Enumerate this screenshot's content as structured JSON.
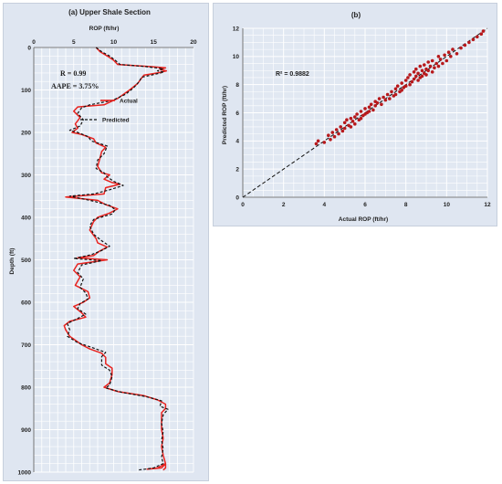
{
  "chart_data": [
    {
      "type": "line",
      "title": "(a) Upper Shale Section",
      "xlabel": "ROP (ft/hr)",
      "ylabel": "Depth (ft)",
      "xlim": [
        0,
        20
      ],
      "ylim": [
        1000,
        0
      ],
      "xticks": [
        0,
        5,
        10,
        15,
        20
      ],
      "yticks": [
        0,
        100,
        200,
        300,
        400,
        500,
        600,
        700,
        800,
        900,
        1000
      ],
      "x_axis_position": "top",
      "y_inverted": true,
      "grid": true,
      "legend_position": "top-right",
      "annotations": [
        "R = 0.99",
        "AAPE = 3.75%"
      ],
      "series": [
        {
          "name": "Actual",
          "color": "#e8231f",
          "style": "solid",
          "points": [
            [
              7.8,
              0
            ],
            [
              8.3,
              10
            ],
            [
              9.2,
              20
            ],
            [
              10.0,
              30
            ],
            [
              10.5,
              40
            ],
            [
              14.5,
              45
            ],
            [
              16.5,
              48
            ],
            [
              15.8,
              52
            ],
            [
              16.6,
              55
            ],
            [
              15.5,
              60
            ],
            [
              13.8,
              65
            ],
            [
              13.5,
              72
            ],
            [
              13.0,
              85
            ],
            [
              12.0,
              100
            ],
            [
              10.5,
              120
            ],
            [
              8.8,
              135
            ],
            [
              5.5,
              140
            ],
            [
              5.0,
              150
            ],
            [
              5.8,
              165
            ],
            [
              5.2,
              180
            ],
            [
              5.5,
              190
            ],
            [
              4.8,
              200
            ],
            [
              6.0,
              205
            ],
            [
              7.5,
              215
            ],
            [
              7.8,
              225
            ],
            [
              9.0,
              235
            ],
            [
              8.5,
              245
            ],
            [
              8.3,
              260
            ],
            [
              8.0,
              280
            ],
            [
              8.5,
              295
            ],
            [
              9.5,
              300
            ],
            [
              8.8,
              310
            ],
            [
              9.8,
              318
            ],
            [
              10.8,
              322
            ],
            [
              9.0,
              330
            ],
            [
              8.8,
              345
            ],
            [
              4.0,
              352
            ],
            [
              8.0,
              360
            ],
            [
              9.0,
              370
            ],
            [
              10.5,
              380
            ],
            [
              9.5,
              390
            ],
            [
              8.0,
              400
            ],
            [
              7.5,
              410
            ],
            [
              7.0,
              430
            ],
            [
              7.8,
              450
            ],
            [
              8.0,
              460
            ],
            [
              9.2,
              470
            ],
            [
              8.2,
              480
            ],
            [
              7.5,
              490
            ],
            [
              5.5,
              495
            ],
            [
              9.2,
              500
            ],
            [
              5.5,
              510
            ],
            [
              5.0,
              525
            ],
            [
              5.8,
              540
            ],
            [
              5.2,
              560
            ],
            [
              6.8,
              575
            ],
            [
              7.0,
              590
            ],
            [
              6.2,
              600
            ],
            [
              5.0,
              610
            ],
            [
              6.0,
              625
            ],
            [
              6.5,
              635
            ],
            [
              4.5,
              645
            ],
            [
              3.8,
              655
            ],
            [
              4.0,
              665
            ],
            [
              4.5,
              680
            ],
            [
              6.0,
              700
            ],
            [
              7.0,
              710
            ],
            [
              8.5,
              720
            ],
            [
              9.0,
              730
            ],
            [
              9.0,
              745
            ],
            [
              9.8,
              755
            ],
            [
              9.8,
              770
            ],
            [
              9.5,
              790
            ],
            [
              8.8,
              800
            ],
            [
              10.5,
              810
            ],
            [
              13.8,
              820
            ],
            [
              15.5,
              830
            ],
            [
              16.5,
              840
            ],
            [
              16.5,
              850
            ],
            [
              16.0,
              860
            ],
            [
              16.0,
              880
            ],
            [
              16.0,
              900
            ],
            [
              16.2,
              920
            ],
            [
              16.0,
              940
            ],
            [
              16.2,
              960
            ],
            [
              16.5,
              980
            ],
            [
              15.5,
              990
            ],
            [
              14.2,
              993
            ],
            [
              16.0,
              990
            ],
            [
              16.5,
              980
            ],
            [
              16.5,
              990
            ],
            [
              16.2,
              995
            ]
          ]
        },
        {
          "name": "Predicted",
          "color": "#111111",
          "style": "dashed",
          "points": [
            [
              7.8,
              0
            ],
            [
              8.5,
              10
            ],
            [
              9.5,
              20
            ],
            [
              10.2,
              30
            ],
            [
              10.8,
              40
            ],
            [
              14.0,
              45
            ],
            [
              16.2,
              50
            ],
            [
              15.5,
              55
            ],
            [
              16.3,
              58
            ],
            [
              15.2,
              63
            ],
            [
              13.5,
              70
            ],
            [
              13.2,
              80
            ],
            [
              12.5,
              95
            ],
            [
              11.5,
              110
            ],
            [
              9.8,
              125
            ],
            [
              7.0,
              135
            ],
            [
              6.0,
              142
            ],
            [
              5.5,
              155
            ],
            [
              6.2,
              170
            ],
            [
              5.8,
              185
            ],
            [
              4.5,
              195
            ],
            [
              5.5,
              200
            ],
            [
              6.8,
              210
            ],
            [
              7.2,
              220
            ],
            [
              9.2,
              232
            ],
            [
              8.8,
              250
            ],
            [
              8.0,
              265
            ],
            [
              7.8,
              285
            ],
            [
              8.8,
              295
            ],
            [
              9.2,
              305
            ],
            [
              10.0,
              315
            ],
            [
              11.2,
              325
            ],
            [
              9.5,
              335
            ],
            [
              7.5,
              345
            ],
            [
              4.5,
              350
            ],
            [
              7.5,
              362
            ],
            [
              9.5,
              372
            ],
            [
              10.2,
              382
            ],
            [
              9.8,
              392
            ],
            [
              7.5,
              405
            ],
            [
              7.0,
              420
            ],
            [
              7.5,
              440
            ],
            [
              8.5,
              455
            ],
            [
              9.5,
              468
            ],
            [
              8.5,
              478
            ],
            [
              7.2,
              488
            ],
            [
              5.0,
              497
            ],
            [
              8.5,
              502
            ],
            [
              6.0,
              512
            ],
            [
              5.5,
              530
            ],
            [
              6.2,
              545
            ],
            [
              5.8,
              565
            ],
            [
              6.5,
              578
            ],
            [
              6.8,
              592
            ],
            [
              5.8,
              603
            ],
            [
              5.5,
              615
            ],
            [
              6.5,
              628
            ],
            [
              5.5,
              638
            ],
            [
              4.2,
              650
            ],
            [
              4.5,
              665
            ],
            [
              4.2,
              680
            ],
            [
              5.5,
              695
            ],
            [
              7.5,
              708
            ],
            [
              9.0,
              718
            ],
            [
              8.5,
              728
            ],
            [
              8.5,
              748
            ],
            [
              9.5,
              760
            ],
            [
              9.8,
              775
            ],
            [
              9.5,
              795
            ],
            [
              9.0,
              802
            ],
            [
              11.0,
              812
            ],
            [
              14.0,
              822
            ],
            [
              16.0,
              832
            ],
            [
              15.8,
              845
            ],
            [
              16.8,
              852
            ],
            [
              16.2,
              865
            ],
            [
              16.0,
              885
            ],
            [
              16.2,
              905
            ],
            [
              16.0,
              925
            ],
            [
              16.2,
              945
            ],
            [
              16.0,
              965
            ],
            [
              16.2,
              980
            ],
            [
              15.0,
              990
            ],
            [
              14.0,
              993
            ],
            [
              13.0,
              995
            ]
          ]
        }
      ]
    },
    {
      "type": "scatter",
      "title": "(b)",
      "xlabel": "Actual ROP (ft/hr)",
      "ylabel": "Predicted ROP (ft/hr)",
      "xlim": [
        0,
        12
      ],
      "ylim": [
        0,
        12
      ],
      "xticks": [
        0,
        2,
        4,
        6,
        8,
        10,
        12
      ],
      "yticks": [
        0,
        2,
        4,
        6,
        8,
        10,
        12
      ],
      "grid": true,
      "annotation": "R² = 0.9882",
      "point_color": "#b7191c",
      "reference_line": {
        "from": [
          0,
          0
        ],
        "to": [
          12,
          12
        ],
        "style": "dashed"
      },
      "points": [
        [
          3.6,
          3.8
        ],
        [
          3.7,
          4.0
        ],
        [
          4.0,
          3.9
        ],
        [
          4.2,
          4.4
        ],
        [
          4.3,
          4.1
        ],
        [
          4.4,
          4.6
        ],
        [
          4.5,
          4.3
        ],
        [
          4.6,
          4.8
        ],
        [
          4.7,
          4.5
        ],
        [
          4.8,
          5.0
        ],
        [
          4.9,
          4.7
        ],
        [
          5.0,
          5.3
        ],
        [
          5.0,
          4.9
        ],
        [
          5.1,
          5.5
        ],
        [
          5.2,
          5.1
        ],
        [
          5.3,
          5.6
        ],
        [
          5.3,
          5.0
        ],
        [
          5.4,
          5.4
        ],
        [
          5.5,
          5.7
        ],
        [
          5.5,
          5.2
        ],
        [
          5.6,
          5.9
        ],
        [
          5.7,
          5.5
        ],
        [
          5.8,
          6.1
        ],
        [
          5.8,
          5.6
        ],
        [
          5.9,
          5.8
        ],
        [
          6.0,
          6.3
        ],
        [
          6.0,
          5.9
        ],
        [
          6.1,
          6.0
        ],
        [
          6.2,
          6.4
        ],
        [
          6.2,
          6.1
        ],
        [
          6.3,
          6.6
        ],
        [
          6.4,
          6.2
        ],
        [
          6.5,
          6.8
        ],
        [
          6.5,
          6.5
        ],
        [
          6.6,
          6.7
        ],
        [
          6.7,
          7.0
        ],
        [
          6.8,
          6.6
        ],
        [
          6.9,
          7.1
        ],
        [
          7.0,
          6.9
        ],
        [
          7.1,
          7.3
        ],
        [
          7.2,
          7.0
        ],
        [
          7.3,
          7.5
        ],
        [
          7.4,
          7.2
        ],
        [
          7.5,
          7.7
        ],
        [
          7.5,
          7.3
        ],
        [
          7.6,
          7.9
        ],
        [
          7.7,
          7.5
        ],
        [
          7.8,
          8.1
        ],
        [
          7.8,
          7.6
        ],
        [
          7.9,
          7.8
        ],
        [
          8.0,
          8.3
        ],
        [
          8.0,
          7.9
        ],
        [
          8.1,
          8.5
        ],
        [
          8.2,
          8.0
        ],
        [
          8.2,
          8.7
        ],
        [
          8.3,
          8.2
        ],
        [
          8.4,
          8.9
        ],
        [
          8.4,
          8.4
        ],
        [
          8.5,
          8.6
        ],
        [
          8.5,
          9.1
        ],
        [
          8.6,
          8.3
        ],
        [
          8.6,
          8.8
        ],
        [
          8.7,
          9.3
        ],
        [
          8.7,
          8.5
        ],
        [
          8.8,
          9.0
        ],
        [
          8.8,
          8.6
        ],
        [
          8.9,
          9.4
        ],
        [
          8.9,
          8.8
        ],
        [
          9.0,
          9.1
        ],
        [
          9.0,
          8.7
        ],
        [
          9.1,
          9.6
        ],
        [
          9.1,
          9.0
        ],
        [
          9.2,
          9.3
        ],
        [
          9.3,
          8.9
        ],
        [
          9.3,
          9.7
        ],
        [
          9.4,
          9.2
        ],
        [
          9.5,
          9.5
        ],
        [
          9.6,
          10.0
        ],
        [
          9.6,
          9.3
        ],
        [
          9.7,
          9.8
        ],
        [
          9.8,
          9.5
        ],
        [
          9.9,
          10.1
        ],
        [
          10.0,
          9.7
        ],
        [
          10.1,
          10.3
        ],
        [
          10.2,
          10.0
        ],
        [
          10.3,
          10.5
        ],
        [
          10.5,
          10.2
        ],
        [
          10.7,
          10.6
        ],
        [
          10.9,
          10.8
        ],
        [
          11.1,
          11.0
        ],
        [
          11.3,
          11.2
        ],
        [
          11.5,
          11.4
        ],
        [
          11.7,
          11.6
        ],
        [
          11.8,
          11.8
        ]
      ]
    }
  ]
}
